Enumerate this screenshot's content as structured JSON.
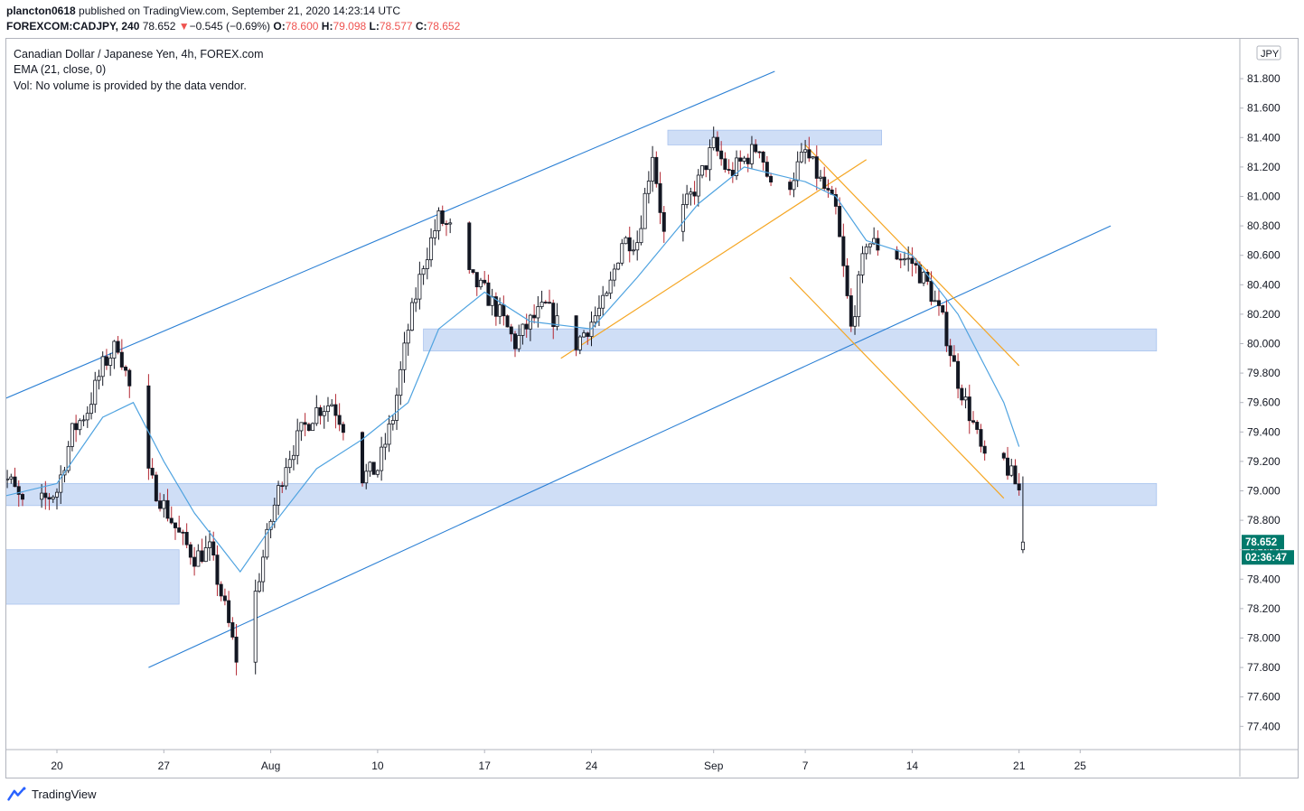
{
  "header": {
    "publisher": "plancton0618",
    "published_text": "published on TradingView.com, September 21, 2020 14:23:14 UTC",
    "symbol": "FOREXCOM:CADJPY, 240",
    "last": "78.652",
    "change_arrow": "▼",
    "change": "−0.545 (−0.69%)",
    "o_label": "O:",
    "o_val": "78.600",
    "h_label": "H:",
    "h_val": "79.098",
    "l_label": "L:",
    "l_val": "78.577",
    "c_label": "C:",
    "c_val": "78.652"
  },
  "legend": {
    "title": "Canadian Dollar / Japanese Yen, 4h, FOREX.com",
    "ema": "EMA (21, close, 0)",
    "vol": "Vol: No volume is provided by the data vendor."
  },
  "footer": {
    "brand": "TradingView"
  },
  "colors": {
    "up": "#26a69a",
    "down": "#b22833",
    "up_body": "#131722",
    "ema": "#4fa3e0",
    "channel": "#2a7fd4",
    "orange": "#f5a623",
    "zone": "#c7d8f5",
    "price_tag": "#00796b"
  },
  "chart_data": {
    "type": "candlestick",
    "currency_label": "JPY",
    "price_label": "78.652",
    "countdown_label": "02:36:47",
    "ylim": [
      77.2,
      82.15
    ],
    "y_ticks": [
      "81.800",
      "81.600",
      "81.400",
      "81.200",
      "81.000",
      "80.800",
      "80.600",
      "80.400",
      "80.200",
      "80.000",
      "79.800",
      "79.600",
      "79.400",
      "79.200",
      "79.000",
      "78.800",
      "78.600",
      "78.400",
      "78.200",
      "78.000",
      "77.800",
      "77.600",
      "77.400"
    ],
    "x_ticks": [
      {
        "label": "20",
        "date": "2020-07-20"
      },
      {
        "label": "27",
        "date": "2020-07-27"
      },
      {
        "label": "Aug",
        "date": "2020-08-03"
      },
      {
        "label": "10",
        "date": "2020-08-10"
      },
      {
        "label": "17",
        "date": "2020-08-17"
      },
      {
        "label": "24",
        "date": "2020-08-24"
      },
      {
        "label": "Sep",
        "date": "2020-09-01"
      },
      {
        "label": "7",
        "date": "2020-09-07"
      },
      {
        "label": "14",
        "date": "2020-09-14"
      },
      {
        "label": "21",
        "date": "2020-09-21"
      },
      {
        "label": "25",
        "date": "2020-09-25"
      }
    ],
    "price_path": [
      [
        "2020-07-16",
        79.15
      ],
      [
        "2020-07-17",
        79.05
      ],
      [
        "2020-07-18",
        78.85
      ],
      [
        "2020-07-20",
        79.0
      ],
      [
        "2020-07-21",
        79.4
      ],
      [
        "2020-07-22",
        79.55
      ],
      [
        "2020-07-23",
        79.85
      ],
      [
        "2020-07-24",
        80.0
      ],
      [
        "2020-07-25",
        79.6
      ],
      [
        "2020-07-26",
        79.1
      ],
      [
        "2020-07-27",
        78.9
      ],
      [
        "2020-07-28",
        78.7
      ],
      [
        "2020-07-29",
        78.55
      ],
      [
        "2020-07-30",
        78.6
      ],
      [
        "2020-07-31",
        78.2
      ],
      [
        "2020-08-01",
        77.75
      ],
      [
        "2020-08-02",
        78.3
      ],
      [
        "2020-08-03",
        78.8
      ],
      [
        "2020-08-04",
        79.2
      ],
      [
        "2020-08-05",
        79.4
      ],
      [
        "2020-08-06",
        79.55
      ],
      [
        "2020-08-07",
        79.6
      ],
      [
        "2020-08-08",
        79.4
      ],
      [
        "2020-08-09",
        79.1
      ],
      [
        "2020-08-10",
        79.15
      ],
      [
        "2020-08-11",
        79.5
      ],
      [
        "2020-08-12",
        80.1
      ],
      [
        "2020-08-13",
        80.55
      ],
      [
        "2020-08-14",
        80.85
      ],
      [
        "2020-08-15",
        80.75
      ],
      [
        "2020-08-16",
        80.45
      ],
      [
        "2020-08-17",
        80.35
      ],
      [
        "2020-08-18",
        80.2
      ],
      [
        "2020-08-19",
        80.0
      ],
      [
        "2020-08-20",
        80.15
      ],
      [
        "2020-08-21",
        80.25
      ],
      [
        "2020-08-22",
        80.1
      ],
      [
        "2020-08-23",
        80.0
      ],
      [
        "2020-08-24",
        80.15
      ],
      [
        "2020-08-25",
        80.3
      ],
      [
        "2020-08-26",
        80.7
      ],
      [
        "2020-08-27",
        80.7
      ],
      [
        "2020-08-28",
        81.3
      ],
      [
        "2020-08-29",
        80.55
      ],
      [
        "2020-08-30",
        80.9
      ],
      [
        "2020-08-31",
        81.1
      ],
      [
        "2020-09-01",
        81.35
      ],
      [
        "2020-09-02",
        81.15
      ],
      [
        "2020-09-03",
        81.25
      ],
      [
        "2020-09-04",
        81.35
      ],
      [
        "2020-09-05",
        80.95
      ],
      [
        "2020-09-06",
        81.1
      ],
      [
        "2020-09-07",
        81.3
      ],
      [
        "2020-09-08",
        81.1
      ],
      [
        "2020-09-09",
        80.9
      ],
      [
        "2020-09-10",
        80.1
      ],
      [
        "2020-09-11",
        80.7
      ],
      [
        "2020-09-12",
        80.65
      ],
      [
        "2020-09-13",
        80.6
      ],
      [
        "2020-09-14",
        80.55
      ],
      [
        "2020-09-15",
        80.4
      ],
      [
        "2020-09-16",
        80.15
      ],
      [
        "2020-09-17",
        79.75
      ],
      [
        "2020-09-18",
        79.45
      ],
      [
        "2020-09-19",
        79.1
      ],
      [
        "2020-09-19T12:00:00",
        79.55
      ],
      [
        "2020-09-20",
        79.2
      ],
      [
        "2020-09-21",
        79.0
      ],
      [
        "2020-09-21T06:00:00",
        78.65
      ]
    ],
    "ema_21": [
      [
        "2020-07-16",
        78.95
      ],
      [
        "2020-07-20",
        79.05
      ],
      [
        "2020-07-23",
        79.5
      ],
      [
        "2020-07-25",
        79.6
      ],
      [
        "2020-07-27",
        79.2
      ],
      [
        "2020-07-29",
        78.85
      ],
      [
        "2020-08-01",
        78.45
      ],
      [
        "2020-08-03",
        78.75
      ],
      [
        "2020-08-06",
        79.15
      ],
      [
        "2020-08-09",
        79.35
      ],
      [
        "2020-08-12",
        79.6
      ],
      [
        "2020-08-14",
        80.1
      ],
      [
        "2020-08-17",
        80.35
      ],
      [
        "2020-08-20",
        80.15
      ],
      [
        "2020-08-24",
        80.1
      ],
      [
        "2020-08-27",
        80.45
      ],
      [
        "2020-08-31",
        80.95
      ],
      [
        "2020-09-03",
        81.2
      ],
      [
        "2020-09-07",
        81.1
      ],
      [
        "2020-09-09",
        81.0
      ],
      [
        "2020-09-11",
        80.7
      ],
      [
        "2020-09-14",
        80.6
      ],
      [
        "2020-09-17",
        80.2
      ],
      [
        "2020-09-19",
        79.8
      ],
      [
        "2020-09-20",
        79.6
      ],
      [
        "2020-09-21",
        79.3
      ]
    ],
    "overlays": {
      "zones": [
        {
          "from": "2020-08-29",
          "to": "2020-09-12",
          "low": 81.35,
          "high": 81.45
        },
        {
          "from": "2020-08-13",
          "to": "2020-09-30",
          "low": 79.95,
          "high": 80.1
        },
        {
          "from": "2020-07-16",
          "to": "2020-09-30",
          "low": 78.9,
          "high": 79.05
        },
        {
          "from": "2020-07-16",
          "to": "2020-07-28",
          "low": 78.23,
          "high": 78.6
        }
      ],
      "channel_lines": [
        {
          "from": [
            "2020-07-16",
            79.6
          ],
          "to": [
            "2020-09-05",
            81.85
          ]
        },
        {
          "from": [
            "2020-07-26",
            77.8
          ],
          "to": [
            "2020-09-27",
            80.8
          ]
        }
      ],
      "orange_lines": [
        {
          "from": [
            "2020-08-22",
            79.9
          ],
          "to": [
            "2020-09-11",
            81.25
          ]
        },
        {
          "from": [
            "2020-09-07",
            81.35
          ],
          "to": [
            "2020-09-21",
            79.85
          ]
        },
        {
          "from": [
            "2020-09-06",
            80.45
          ],
          "to": [
            "2020-09-20",
            78.95
          ]
        }
      ]
    }
  }
}
